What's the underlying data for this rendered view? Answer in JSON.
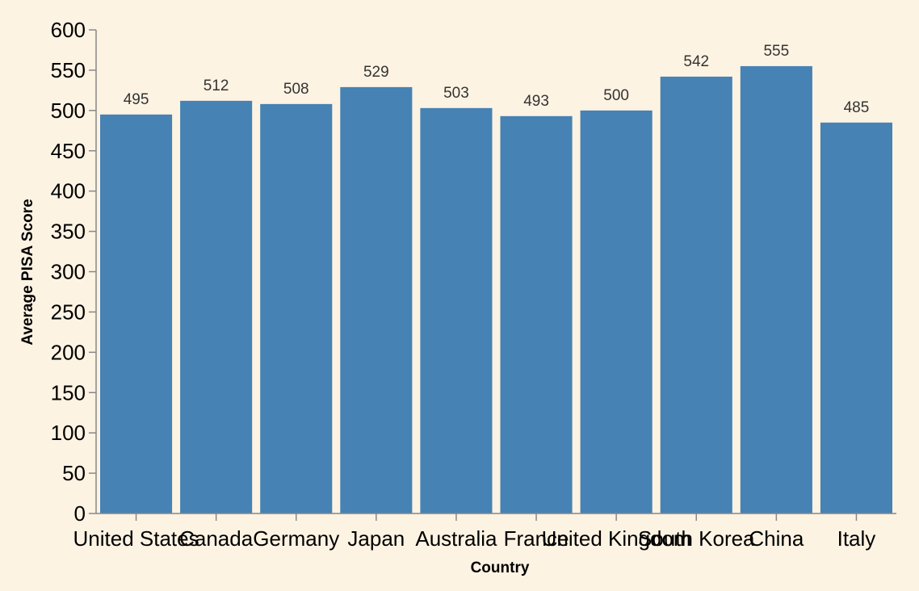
{
  "chart_data": {
    "type": "bar",
    "title": "",
    "xlabel": "Country",
    "ylabel": "Average PISA Score",
    "categories": [
      "United States",
      "Canada",
      "Germany",
      "Japan",
      "Australia",
      "France",
      "United Kingdom",
      "South Korea",
      "China",
      "Italy"
    ],
    "values": [
      495,
      512,
      508,
      529,
      503,
      493,
      500,
      542,
      555,
      485
    ],
    "ylim": [
      0,
      600
    ],
    "yticks": [
      0,
      50,
      100,
      150,
      200,
      250,
      300,
      350,
      400,
      450,
      500,
      550,
      600
    ],
    "grid": false,
    "legend": "none",
    "bar_color": "#4682b4",
    "background_color": "#fdf3e3"
  }
}
